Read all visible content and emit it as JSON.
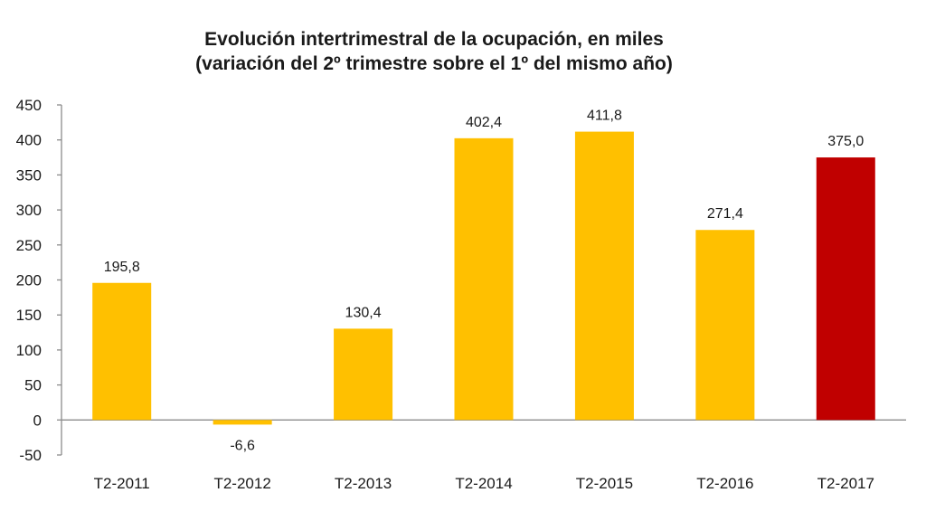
{
  "chart_data": {
    "type": "bar",
    "title_lines": [
      "Evolución intertrimestral de la ocupación, en miles",
      "(variación del 2º trimestre sobre el 1º del mismo año)"
    ],
    "categories": [
      "T2-2011",
      "T2-2012",
      "T2-2013",
      "T2-2014",
      "T2-2015",
      "T2-2016",
      "T2-2017"
    ],
    "values": [
      195.8,
      -6.6,
      130.4,
      402.4,
      411.8,
      271.4,
      375.0
    ],
    "value_labels": [
      "195,8",
      "-6,6",
      "130,4",
      "402,4",
      "411,8",
      "271,4",
      "375,0"
    ],
    "bar_colors": [
      "#FFC000",
      "#FFC000",
      "#FFC000",
      "#FFC000",
      "#FFC000",
      "#FFC000",
      "#C00000"
    ],
    "ylim": [
      -50,
      450
    ],
    "y_ticks": [
      450,
      400,
      350,
      300,
      250,
      200,
      150,
      100,
      50,
      0,
      -50
    ],
    "y_tick_labels": [
      "450",
      "400",
      "350",
      "300",
      "250",
      "200",
      "150",
      "100",
      "50",
      "0",
      "-50"
    ],
    "xlabel": "",
    "ylabel": "",
    "grid": false,
    "legend": "none"
  }
}
